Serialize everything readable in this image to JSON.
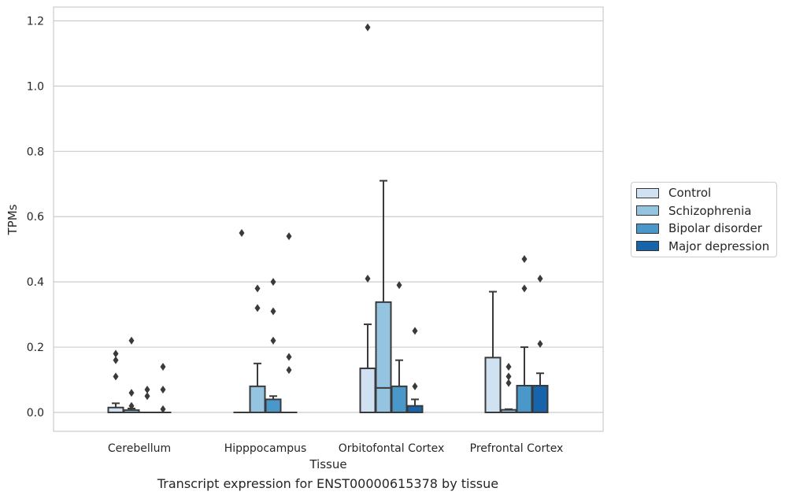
{
  "chart_data": {
    "type": "box",
    "title": "",
    "caption": "Transcript expression for ENST00000615378 by tissue",
    "xlabel": "Tissue",
    "ylabel": "TPMs",
    "ylim": [
      -0.057,
      1.24
    ],
    "yticks": [
      "0.0",
      "0.2",
      "0.4",
      "0.6",
      "0.8",
      "1.0",
      "1.2"
    ],
    "ytick_values": [
      0.0,
      0.2,
      0.4,
      0.6,
      0.8,
      1.0,
      1.2
    ],
    "categories": [
      "Cerebellum",
      "Hipppocampus",
      "Orbitofontal Cortex",
      "Prefrontal Cortex"
    ],
    "grid": "horizontal",
    "legend_position": "right",
    "series": [
      {
        "name": "Control",
        "color": "#d0e1f2",
        "boxes": [
          {
            "q1": 0.0,
            "median": 0.0,
            "q3": 0.015,
            "whisker_low": 0.0,
            "whisker_high": 0.028,
            "outliers": [
              0.11,
              0.16,
              0.18
            ]
          },
          {
            "q1": 0.0,
            "median": 0.0,
            "q3": 0.0,
            "whisker_low": 0.0,
            "whisker_high": 0.0,
            "outliers": [
              0.55
            ]
          },
          {
            "q1": 0.0,
            "median": 0.0,
            "q3": 0.135,
            "whisker_low": 0.0,
            "whisker_high": 0.27,
            "outliers": [
              0.41,
              1.18
            ]
          },
          {
            "q1": 0.0,
            "median": 0.0,
            "q3": 0.168,
            "whisker_low": 0.0,
            "whisker_high": 0.37,
            "outliers": []
          }
        ]
      },
      {
        "name": "Schizophrenia",
        "color": "#94c4df",
        "boxes": [
          {
            "q1": 0.0,
            "median": 0.0,
            "q3": 0.007,
            "whisker_low": 0.0,
            "whisker_high": 0.012,
            "outliers": [
              0.02,
              0.06,
              0.22
            ]
          },
          {
            "q1": 0.0,
            "median": 0.0,
            "q3": 0.08,
            "whisker_low": 0.0,
            "whisker_high": 0.15,
            "outliers": [
              0.32,
              0.38
            ]
          },
          {
            "q1": 0.0,
            "median": 0.075,
            "q3": 0.338,
            "whisker_low": 0.0,
            "whisker_high": 0.71,
            "outliers": []
          },
          {
            "q1": 0.0,
            "median": 0.0,
            "q3": 0.008,
            "whisker_low": 0.0,
            "whisker_high": 0.01,
            "outliers": [
              0.09,
              0.11,
              0.14
            ]
          }
        ]
      },
      {
        "name": "Bipolar disorder",
        "color": "#4a98c9",
        "boxes": [
          {
            "q1": 0.0,
            "median": 0.0,
            "q3": 0.0,
            "whisker_low": 0.0,
            "whisker_high": 0.0,
            "outliers": [
              0.05,
              0.07
            ]
          },
          {
            "q1": 0.0,
            "median": 0.0,
            "q3": 0.04,
            "whisker_low": 0.0,
            "whisker_high": 0.05,
            "outliers": [
              0.22,
              0.31,
              0.4
            ]
          },
          {
            "q1": 0.0,
            "median": 0.0,
            "q3": 0.08,
            "whisker_low": 0.0,
            "whisker_high": 0.16,
            "outliers": [
              0.39
            ]
          },
          {
            "q1": 0.0,
            "median": 0.0,
            "q3": 0.082,
            "whisker_low": 0.0,
            "whisker_high": 0.2,
            "outliers": [
              0.38,
              0.47
            ]
          }
        ]
      },
      {
        "name": "Major depression",
        "color": "#1764ab",
        "boxes": [
          {
            "q1": 0.0,
            "median": 0.0,
            "q3": 0.0,
            "whisker_low": 0.0,
            "whisker_high": 0.0,
            "outliers": [
              0.01,
              0.07,
              0.14
            ]
          },
          {
            "q1": 0.0,
            "median": 0.0,
            "q3": 0.0,
            "whisker_low": 0.0,
            "whisker_high": 0.0,
            "outliers": [
              0.13,
              0.17,
              0.54
            ]
          },
          {
            "q1": 0.0,
            "median": 0.0,
            "q3": 0.02,
            "whisker_low": 0.0,
            "whisker_high": 0.04,
            "outliers": [
              0.08,
              0.25
            ]
          },
          {
            "q1": 0.0,
            "median": 0.0,
            "q3": 0.082,
            "whisker_low": 0.0,
            "whisker_high": 0.12,
            "outliers": [
              0.21,
              0.41
            ]
          }
        ]
      }
    ]
  }
}
